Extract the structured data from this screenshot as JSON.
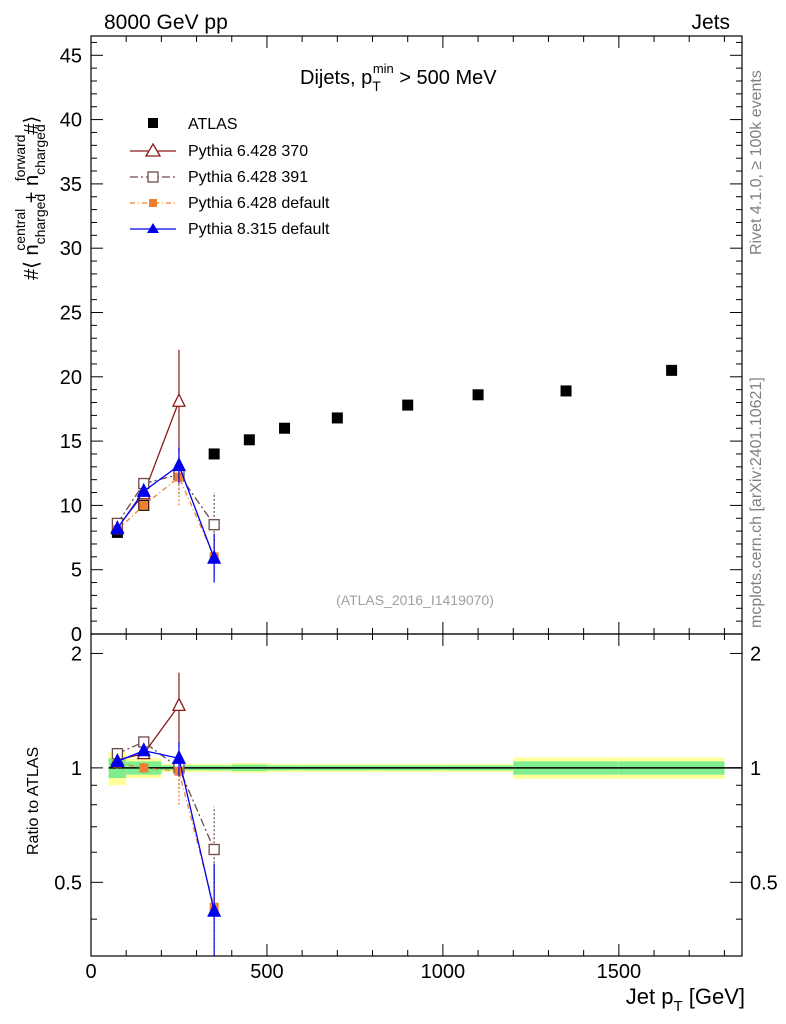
{
  "header": {
    "left": "8000 GeV pp",
    "right": "Jets"
  },
  "side_labels": {
    "rivet": "Rivet 4.1.0, ≥ 100k events",
    "mcplots": "mcplots.cern.ch [arXiv:2401.10621]"
  },
  "chart_data": {
    "type": "scatter",
    "title": {
      "pre": "Dijets, p",
      "sup": "min",
      "sub": "T",
      "post": " > 500 MeV"
    },
    "analysis": "(ATLAS_2016_I1419070)",
    "xlabel": {
      "main": "Jet p",
      "sub": "T",
      "post": " [GeV]"
    },
    "ylabel": {
      "prefix": "#⟨ n",
      "sup1": "central",
      "sub1": "charged",
      "mid": " + n",
      "sup2": "forward",
      "sub2": "charged",
      "suffix": "#⟩"
    },
    "ratio_ylabel": "Ratio to ATLAS",
    "xlim": [
      0,
      1850
    ],
    "ylim": [
      0,
      46.5
    ],
    "ratio_ylim": [
      0.32,
      2.25
    ],
    "x_ticks": [
      0,
      500,
      1000,
      1500
    ],
    "x_tick_labels": [
      "0",
      "500",
      "1000",
      "1500"
    ],
    "y_ticks": [
      0,
      5,
      10,
      15,
      20,
      25,
      30,
      35,
      40,
      45
    ],
    "y_tick_labels": [
      "0",
      "5",
      "10",
      "15",
      "20",
      "25",
      "30",
      "35",
      "40",
      "45"
    ],
    "ratio_ticks": [
      0.5,
      1,
      2
    ],
    "ratio_tick_labels": [
      "0.5",
      "1",
      "2"
    ],
    "legend": [
      "ATLAS",
      "Pythia 6.428 370",
      "Pythia 6.428 391",
      "Pythia 6.428 default",
      "Pythia 8.315 default"
    ],
    "data": {
      "name": "ATLAS",
      "bins": [
        [
          50,
          100
        ],
        [
          100,
          200
        ],
        [
          200,
          300
        ],
        [
          300,
          400
        ],
        [
          400,
          500
        ],
        [
          500,
          600
        ],
        [
          600,
          800
        ],
        [
          800,
          1000
        ],
        [
          1000,
          1200
        ],
        [
          1200,
          1500
        ],
        [
          1500,
          1800
        ]
      ],
      "x": [
        75,
        150,
        250,
        350,
        450,
        550,
        700,
        900,
        1100,
        1350,
        1650
      ],
      "y": [
        7.9,
        10.0,
        12.4,
        14.0,
        15.1,
        16.0,
        16.8,
        17.8,
        18.6,
        18.9,
        20.5
      ],
      "band_inner": [
        0.06,
        0.04,
        0.015,
        0.015,
        0.02,
        0.015,
        0.015,
        0.015,
        0.015,
        0.04,
        0.04
      ],
      "band_outer": [
        0.1,
        0.06,
        0.025,
        0.025,
        0.03,
        0.025,
        0.025,
        0.025,
        0.025,
        0.065,
        0.065
      ]
    },
    "series": [
      {
        "name": "Pythia 6.428 370",
        "color": "#8b1a1a",
        "marker": "triangle-open",
        "dash": "",
        "x": [
          75,
          150,
          250
        ],
        "y": [
          8.3,
          10.9,
          18.1
        ],
        "err": [
          0.3,
          0.3,
          4.0
        ],
        "ratio": [
          1.05,
          1.09,
          1.46
        ],
        "ratio_err": [
          0.04,
          0.03,
          0.32
        ]
      },
      {
        "name": "Pythia 6.428 391",
        "color": "#6e4a4a",
        "marker": "square-open",
        "dash": "8,3,2,3",
        "x": [
          75,
          150,
          250,
          350
        ],
        "y": [
          8.6,
          11.7,
          12.4,
          8.5
        ],
        "err": [
          0.3,
          0.4,
          1.5,
          2.5
        ],
        "ratio": [
          1.09,
          1.17,
          1.0,
          0.61
        ],
        "ratio_err": [
          0.04,
          0.04,
          0.12,
          0.18
        ]
      },
      {
        "name": "Pythia 6.428 default",
        "color": "#f08030",
        "marker": "square-filled",
        "dash": "5,3,1,3",
        "x": [
          75,
          150,
          250,
          350
        ],
        "y": [
          8.1,
          10.0,
          12.2,
          6.0
        ],
        "err": [
          0.3,
          0.3,
          2.2,
          1.5
        ],
        "ratio": [
          1.03,
          1.0,
          0.98,
          0.43
        ],
        "ratio_err": [
          0.04,
          0.03,
          0.18,
          0.11
        ]
      },
      {
        "name": "Pythia 8.315 default",
        "color": "#0000ee",
        "marker": "triangle-filled",
        "dash": "",
        "x": [
          75,
          150,
          250,
          350
        ],
        "y": [
          8.2,
          11.1,
          13.1,
          5.9
        ],
        "err": [
          0.3,
          0.3,
          1.4,
          1.9
        ],
        "ratio": [
          1.04,
          1.11,
          1.06,
          0.42
        ],
        "ratio_err": [
          0.04,
          0.03,
          0.11,
          0.14
        ]
      }
    ]
  }
}
